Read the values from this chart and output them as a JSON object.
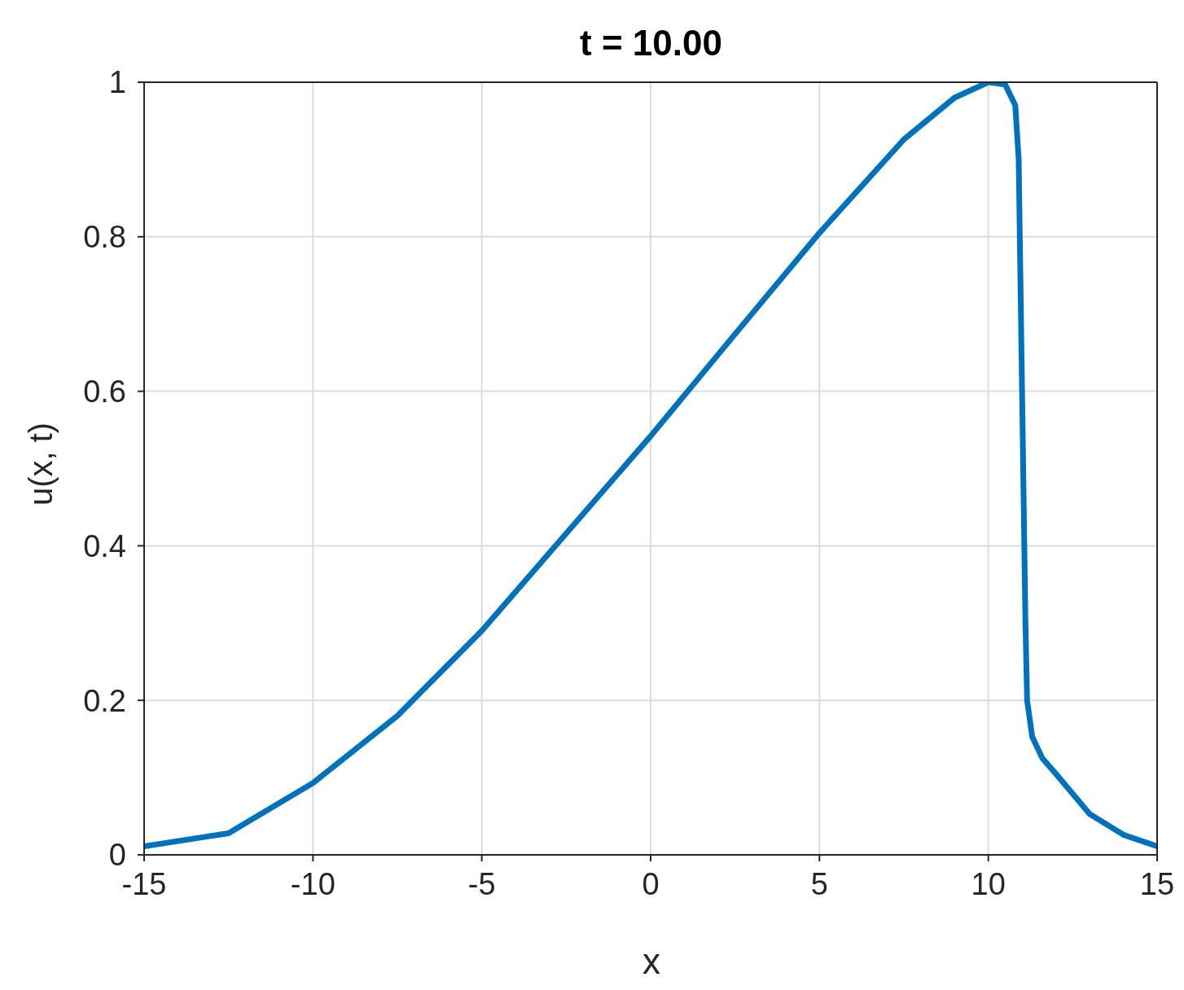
{
  "chart_data": {
    "type": "line",
    "title": "t = 10.00",
    "xlabel": "x",
    "ylabel": "u(x, t)",
    "x": [
      -15,
      -12.5,
      -10,
      -7.5,
      -5,
      -2.5,
      0,
      2.5,
      5,
      7.5,
      9,
      10,
      10.5,
      10.8,
      10.9,
      11,
      11.1,
      11.15,
      11.3,
      11.6,
      12,
      12.5,
      13,
      14,
      15
    ],
    "series": [
      {
        "color": "#0072bd",
        "values": [
          0.011,
          0.028,
          0.093,
          0.18,
          0.29,
          0.416,
          0.542,
          0.674,
          0.805,
          0.926,
          0.98,
          1.0,
          0.997,
          0.97,
          0.9,
          0.6,
          0.3,
          0.2,
          0.153,
          0.125,
          0.105,
          0.079,
          0.053,
          0.026,
          0.011
        ]
      }
    ],
    "xlim": [
      -15,
      15
    ],
    "xticks": [
      -15,
      -10,
      -5,
      0,
      5,
      10,
      15
    ],
    "ylim": [
      0,
      1
    ],
    "yticks": [
      0,
      0.2,
      0.4,
      0.6,
      0.8,
      1
    ],
    "grid": true,
    "marker": "none",
    "line_style": "solid"
  }
}
